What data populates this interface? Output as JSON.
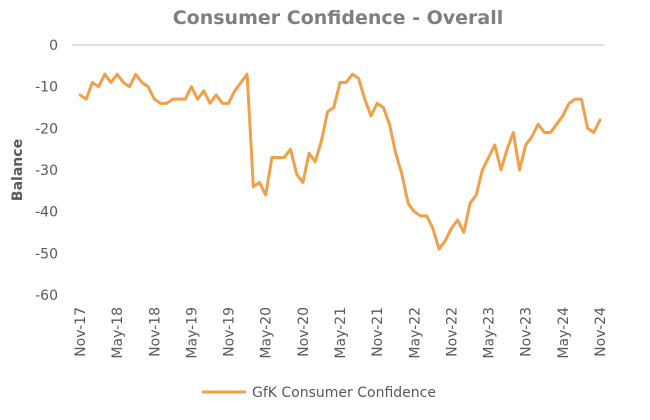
{
  "chart_data": {
    "type": "line",
    "title": "Consumer Confidence - Overall",
    "xlabel": "",
    "ylabel": "Balance",
    "ylim": [
      -60,
      0
    ],
    "yticks": [
      0,
      -10,
      -20,
      -30,
      -40,
      -50,
      -60
    ],
    "ytick_labels": [
      "0",
      "-10",
      "-20",
      "-30",
      "-40",
      "-50",
      "-60"
    ],
    "xtick_labels": [
      "Nov-17",
      "May-18",
      "Nov-18",
      "May-19",
      "Nov-19",
      "May-20",
      "Nov-20",
      "May-21",
      "Nov-21",
      "May-22",
      "Nov-22",
      "May-23",
      "Nov-23",
      "May-24",
      "Nov-24"
    ],
    "legend_position": "bottom",
    "grid": false,
    "color": "#f0a04b",
    "series": [
      {
        "name": "GfK Consumer Confidence",
        "x": [
          "Nov-17",
          "Dec-17",
          "Jan-18",
          "Feb-18",
          "Mar-18",
          "Apr-18",
          "May-18",
          "Jun-18",
          "Jul-18",
          "Aug-18",
          "Sep-18",
          "Oct-18",
          "Nov-18",
          "Dec-18",
          "Jan-19",
          "Feb-19",
          "Mar-19",
          "Apr-19",
          "May-19",
          "Jun-19",
          "Jul-19",
          "Aug-19",
          "Sep-19",
          "Oct-19",
          "Nov-19",
          "Dec-19",
          "Jan-20",
          "Feb-20",
          "Mar-20",
          "Apr-20",
          "May-20",
          "Jun-20",
          "Jul-20",
          "Aug-20",
          "Sep-20",
          "Oct-20",
          "Nov-20",
          "Dec-20",
          "Jan-21",
          "Feb-21",
          "Mar-21",
          "Apr-21",
          "May-21",
          "Jun-21",
          "Jul-21",
          "Aug-21",
          "Sep-21",
          "Oct-21",
          "Nov-21",
          "Dec-21",
          "Jan-22",
          "Feb-22",
          "Mar-22",
          "Apr-22",
          "May-22",
          "Jun-22",
          "Jul-22",
          "Aug-22",
          "Sep-22",
          "Oct-22",
          "Nov-22",
          "Dec-22",
          "Jan-23",
          "Feb-23",
          "Mar-23",
          "Apr-23",
          "May-23",
          "Jun-23",
          "Jul-23",
          "Aug-23",
          "Sep-23",
          "Oct-23",
          "Nov-23",
          "Dec-23",
          "Jan-24",
          "Feb-24",
          "Mar-24",
          "Apr-24",
          "May-24",
          "Jun-24",
          "Jul-24",
          "Aug-24",
          "Sep-24",
          "Oct-24",
          "Nov-24"
        ],
        "values": [
          -12,
          -13,
          -9,
          -10,
          -7,
          -9,
          -7,
          -9,
          -10,
          -7,
          -9,
          -10,
          -13,
          -14,
          -14,
          -13,
          -13,
          -13,
          -10,
          -13,
          -11,
          -14,
          -12,
          -14,
          -14,
          -11,
          -9,
          -7,
          -34,
          -33,
          -36,
          -27,
          -27,
          -27,
          -25,
          -31,
          -33,
          -26,
          -28,
          -23,
          -16,
          -15,
          -9,
          -9,
          -7,
          -8,
          -13,
          -17,
          -14,
          -15,
          -19,
          -26,
          -31,
          -38,
          -40,
          -41,
          -41,
          -44,
          -49,
          -47,
          -44,
          -42,
          -45,
          -38,
          -36,
          -30,
          -27,
          -24,
          -30,
          -25,
          -21,
          -30,
          -24,
          -22,
          -19,
          -21,
          -21,
          -19,
          -17,
          -14,
          -13,
          -13,
          -20,
          -21,
          -18
        ]
      }
    ]
  }
}
